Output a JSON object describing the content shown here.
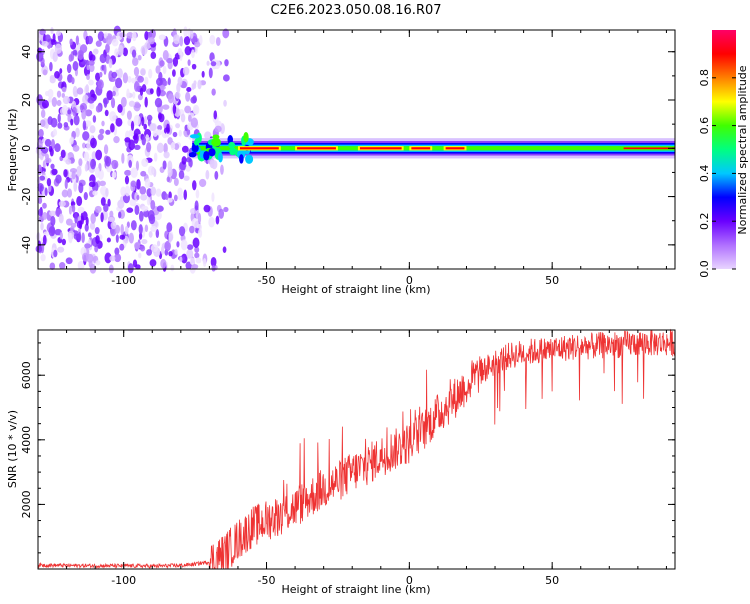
{
  "title": "C2E6.2023.050.08.16.R07",
  "chart_data": [
    {
      "type": "heatmap",
      "title": "C2E6.2023.050.08.16.R07",
      "xlabel": "Height of straight line (km)",
      "ylabel": "Frequency (Hz)",
      "xlim": [
        -130,
        93
      ],
      "ylim": [
        -50,
        49
      ],
      "xticks": [
        -100,
        -50,
        0,
        50
      ],
      "xtick_labels": [
        "-100",
        "-50",
        "0",
        "50"
      ],
      "yticks": [
        -40,
        -20,
        0,
        20,
        40
      ],
      "ytick_labels": [
        "-40",
        "-20",
        "0",
        "20",
        "40"
      ],
      "ridge": {
        "description": "spectral ridge near 0 Hz",
        "x_start": -76,
        "x_end": 93,
        "frequency": 0,
        "peak_amplitude": 0.95
      },
      "noise_region": {
        "x_start": -130,
        "x_end": -64,
        "amplitude": 0.15
      },
      "colorbar": {
        "label": "Normalized spectral amplitude",
        "range": [
          0,
          1
        ],
        "ticks": [
          0.0,
          0.2,
          0.4,
          0.6,
          0.8
        ],
        "tick_labels": [
          "0.0",
          "0.2",
          "0.4",
          "0.6",
          "0.8"
        ],
        "colors": [
          "#e8d4ff",
          "#b070ff",
          "#6a00ff",
          "#0000ff",
          "#00c8ff",
          "#00ff80",
          "#40ff00",
          "#ffff00",
          "#ff8000",
          "#ff0000",
          "#ff0066"
        ]
      }
    },
    {
      "type": "line",
      "xlabel": "Height of straight line (km)",
      "ylabel": "SNR (10 * v/v)",
      "xlim": [
        -130,
        93
      ],
      "ylim": [
        0,
        7400
      ],
      "xticks": [
        -100,
        -50,
        0,
        50
      ],
      "xtick_labels": [
        "-100",
        "-50",
        "0",
        "50"
      ],
      "yticks": [
        2000,
        4000,
        6000
      ],
      "ytick_labels": [
        "2000",
        "4000",
        "6000"
      ],
      "series": [
        {
          "name": "SNR",
          "color": "#ee3333",
          "x": [
            -130,
            -120,
            -110,
            -100,
            -90,
            -80,
            -75,
            -70,
            -65,
            -60,
            -55,
            -50,
            -45,
            -40,
            -35,
            -30,
            -25,
            -20,
            -15,
            -10,
            -5,
            0,
            5,
            10,
            15,
            20,
            25,
            30,
            35,
            40,
            45,
            50,
            55,
            60,
            65,
            70,
            75,
            80,
            85,
            90,
            93
          ],
          "y": [
            120,
            110,
            100,
            100,
            90,
            110,
            150,
            220,
            450,
            900,
            1300,
            1500,
            1700,
            1900,
            2200,
            2500,
            2700,
            3000,
            3200,
            3500,
            3700,
            3900,
            4300,
            4800,
            5200,
            5700,
            6100,
            6400,
            6600,
            6700,
            6750,
            6800,
            6850,
            6900,
            6900,
            6950,
            6950,
            7000,
            7000,
            7000,
            7000
          ]
        }
      ]
    }
  ]
}
